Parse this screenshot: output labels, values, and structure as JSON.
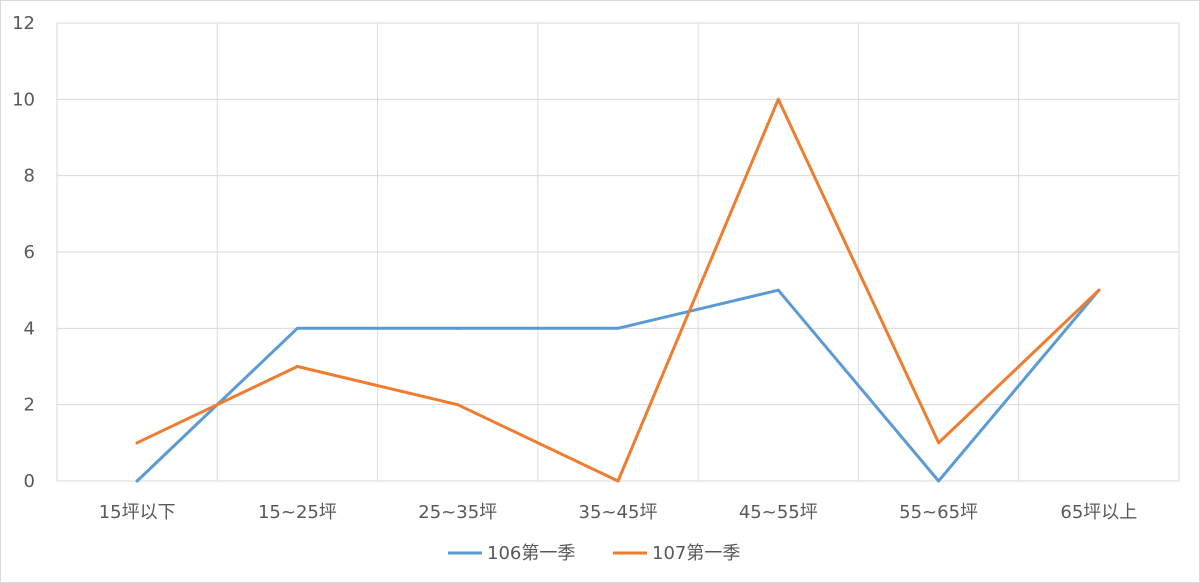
{
  "chart_data": {
    "type": "line",
    "title": "",
    "xlabel": "",
    "ylabel": "",
    "categories": [
      "15坪以下",
      "15~25坪",
      "25~35坪",
      "35~45坪",
      "45~55坪",
      "55~65坪",
      "65坪以上"
    ],
    "ylim": [
      0,
      12
    ],
    "yticks": [
      "0",
      "2",
      "4",
      "6",
      "8",
      "10",
      "12"
    ],
    "grid": true,
    "legend_position": "bottom",
    "series": [
      {
        "name": "106第一季",
        "color": "#5b9bd5",
        "values": [
          0,
          4,
          4,
          4,
          5,
          0,
          5
        ]
      },
      {
        "name": "107第一季",
        "color": "#ed7d31",
        "values": [
          1,
          3,
          2,
          0,
          10,
          1,
          5
        ]
      }
    ]
  }
}
